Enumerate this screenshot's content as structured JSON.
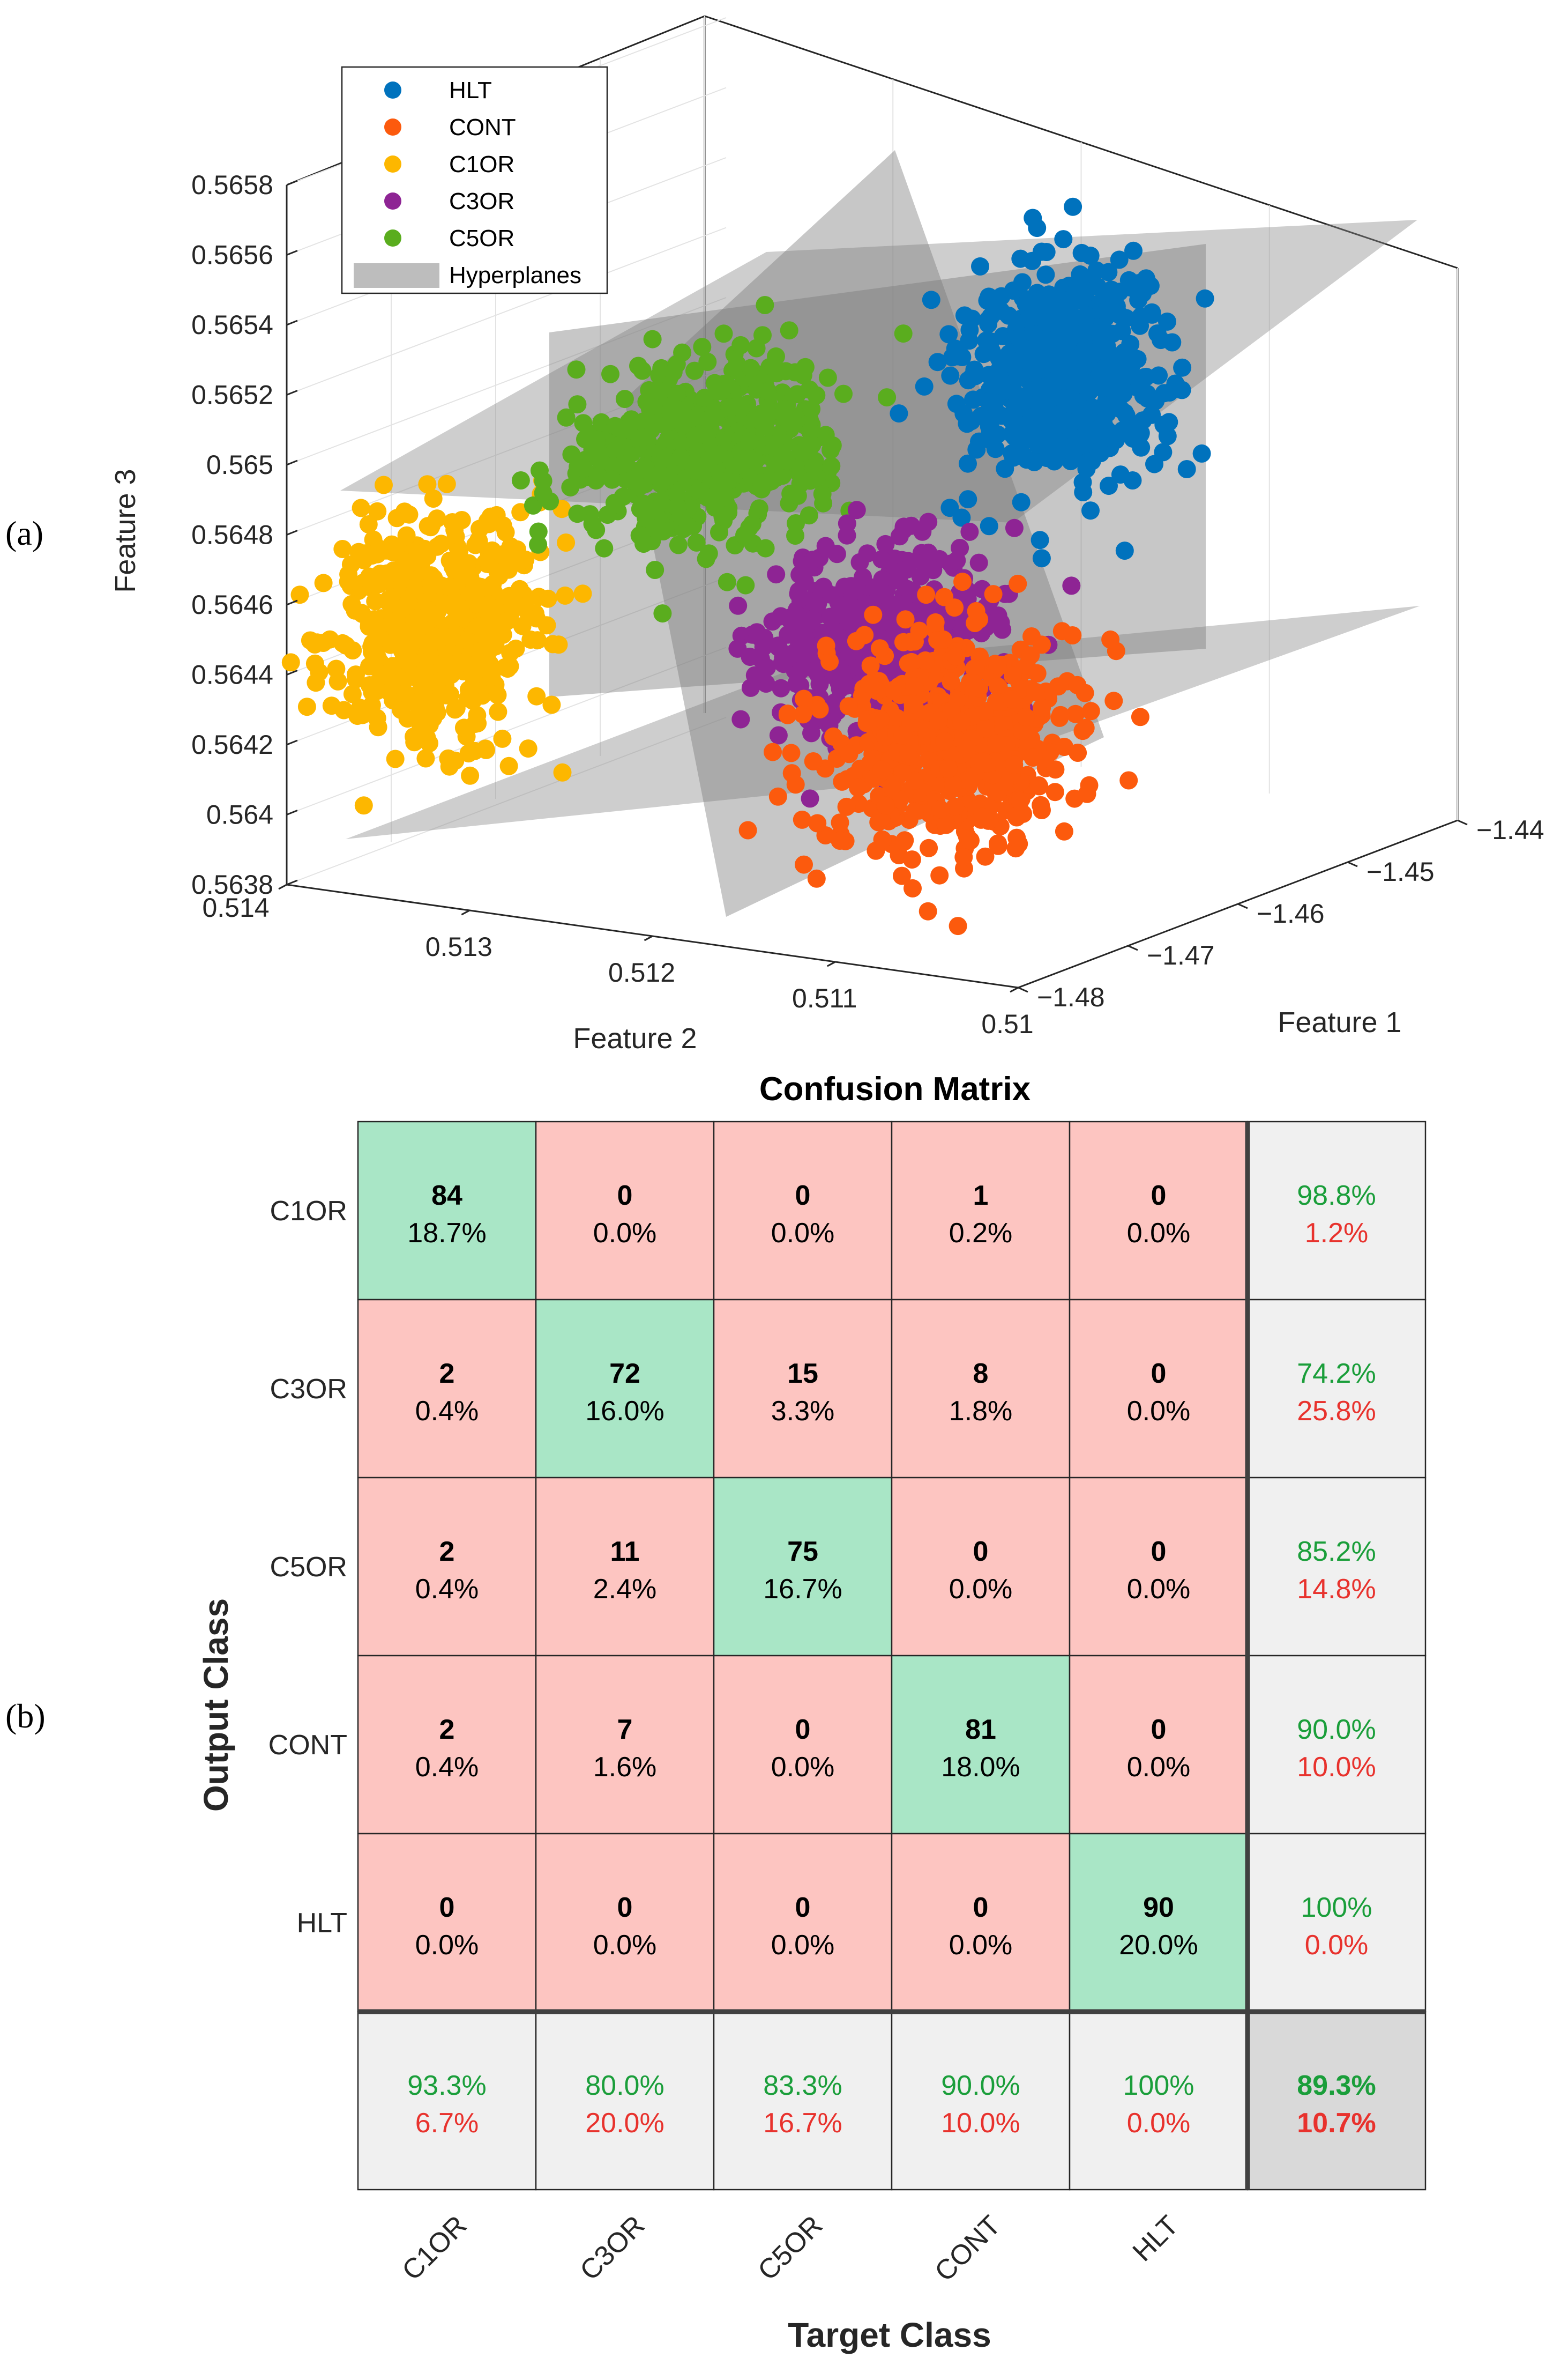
{
  "panel_labels": {
    "a": "(a)",
    "b": "(b)"
  },
  "colors": {
    "HLT": "#0072bd",
    "CONT": "#fc5a0d",
    "C1OR": "#fdb700",
    "C3OR": "#8e2494",
    "C5OR": "#5aad1e",
    "hyperplane": "#9a9a9a",
    "cm_correct": "#a9e6c6",
    "cm_wrong": "#fdc5c1",
    "cm_summary": "#f0f0f0",
    "cm_total": "#d9d9d9",
    "ok_text": "#1a9e3a",
    "err_text": "#e8322d"
  },
  "chart_data": [
    {
      "type": "scatter",
      "title": "",
      "xlabel": "Feature 1",
      "ylabel": "Feature 2",
      "zlabel": "Feature 3",
      "xlim": [
        -1.48,
        -1.44
      ],
      "ylim": [
        0.51,
        0.514
      ],
      "zlim": [
        0.5638,
        0.5658
      ],
      "grid": true,
      "legend_position": "top-left",
      "x_ticks": [
        "−1.48",
        "−1.47",
        "−1.46",
        "−1.45",
        "−1.44"
      ],
      "y_ticks": [
        "0.51",
        "0.511",
        "0.512",
        "0.513",
        "0.514"
      ],
      "z_ticks": [
        "0.5638",
        "0.564",
        "0.5642",
        "0.5644",
        "0.5646",
        "0.5648",
        "0.565",
        "0.5652",
        "0.5654",
        "0.5656",
        "0.5658"
      ],
      "legend": [
        "HLT",
        "CONT",
        "C1OR",
        "C3OR",
        "C5OR",
        "Hyperplanes"
      ],
      "series": [
        {
          "name": "HLT",
          "n": 90,
          "center": [
            -1.443,
            0.512,
            0.56495
          ],
          "spread": [
            0.003,
            0.00022,
            0.00015
          ]
        },
        {
          "name": "CONT",
          "n": 90,
          "center": [
            -1.47,
            0.511,
            0.5643
          ],
          "spread": [
            0.004,
            0.00025,
            0.00016
          ]
        },
        {
          "name": "C1OR",
          "n": 90,
          "center": [
            -1.478,
            0.5133,
            0.56455
          ],
          "spread": [
            0.003,
            0.0002,
            0.00016
          ]
        },
        {
          "name": "C3OR",
          "n": 90,
          "center": [
            -1.466,
            0.5116,
            0.5645
          ],
          "spread": [
            0.0035,
            0.00022,
            0.00013
          ]
        },
        {
          "name": "C5OR",
          "n": 90,
          "center": [
            -1.47,
            0.5123,
            0.56505
          ],
          "spread": [
            0.004,
            0.00024,
            0.00012
          ]
        }
      ]
    },
    {
      "type": "heatmap",
      "title": "Confusion Matrix",
      "xlabel": "Target Class",
      "ylabel": "Output Class",
      "output_classes": [
        "C1OR",
        "C3OR",
        "C5OR",
        "CONT",
        "HLT"
      ],
      "target_classes": [
        "C1OR",
        "C3OR",
        "C5OR",
        "CONT",
        "HLT"
      ],
      "counts": [
        [
          84,
          0,
          0,
          1,
          0
        ],
        [
          2,
          72,
          15,
          8,
          0
        ],
        [
          2,
          11,
          75,
          0,
          0
        ],
        [
          2,
          7,
          0,
          81,
          0
        ],
        [
          0,
          0,
          0,
          0,
          90
        ]
      ],
      "cell_percent": [
        [
          "18.7%",
          "0.0%",
          "0.0%",
          "0.2%",
          "0.0%"
        ],
        [
          "0.4%",
          "16.0%",
          "3.3%",
          "1.8%",
          "0.0%"
        ],
        [
          "0.4%",
          "2.4%",
          "16.7%",
          "0.0%",
          "0.0%"
        ],
        [
          "0.4%",
          "1.6%",
          "0.0%",
          "18.0%",
          "0.0%"
        ],
        [
          "0.0%",
          "0.0%",
          "0.0%",
          "0.0%",
          "20.0%"
        ]
      ],
      "row_summary": [
        [
          "98.8%",
          "1.2%"
        ],
        [
          "74.2%",
          "25.8%"
        ],
        [
          "85.2%",
          "14.8%"
        ],
        [
          "90.0%",
          "10.0%"
        ],
        [
          "100%",
          "0.0%"
        ]
      ],
      "col_summary": [
        [
          "93.3%",
          "6.7%"
        ],
        [
          "80.0%",
          "20.0%"
        ],
        [
          "83.3%",
          "16.7%"
        ],
        [
          "90.0%",
          "10.0%"
        ],
        [
          "100%",
          "0.0%"
        ]
      ],
      "total": [
        "89.3%",
        "10.7%"
      ]
    }
  ]
}
